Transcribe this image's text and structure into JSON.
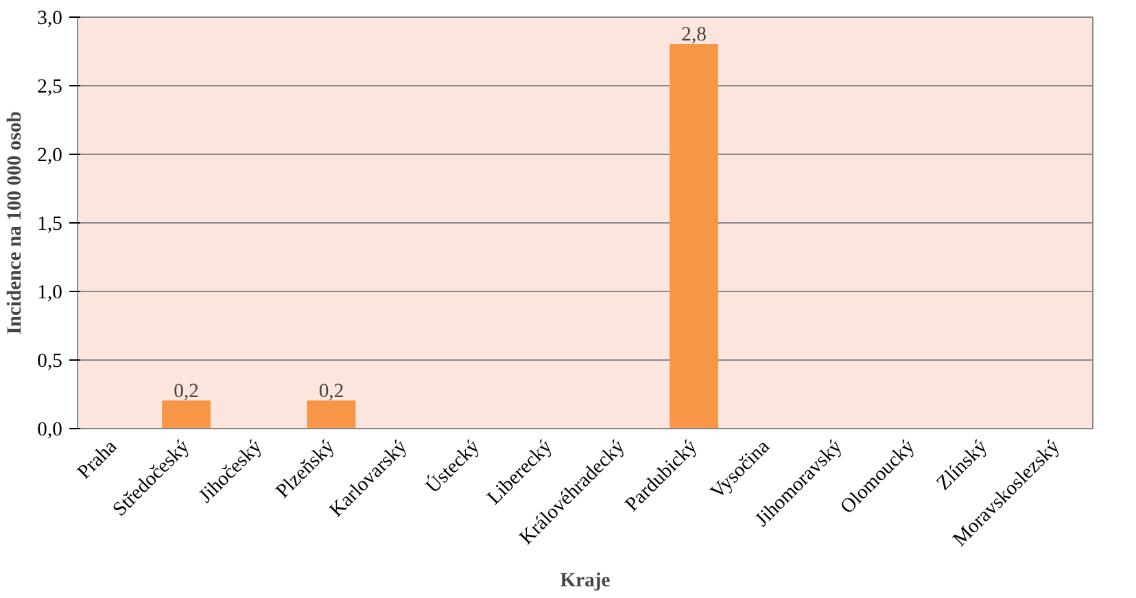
{
  "chart_data": {
    "type": "bar",
    "xlabel": "Kraje",
    "ylabel": "Incidence na 100 000 osob",
    "categories": [
      "Praha",
      "Středočeský",
      "Jihočeský",
      "Plzeňský",
      "Karlovarský",
      "Ústecký",
      "Liberecký",
      "Královéhradecký",
      "Pardubický",
      "Vysočina",
      "Jihomoravský",
      "Olomoucký",
      "Zlínský",
      "Moravskoslezský"
    ],
    "values": [
      0,
      0.2,
      0,
      0.2,
      0,
      0,
      0,
      0,
      2.8,
      0,
      0,
      0,
      0,
      0
    ],
    "value_labels": [
      null,
      "0,2",
      null,
      "0,2",
      null,
      null,
      null,
      null,
      "2,8",
      null,
      null,
      null,
      null,
      null
    ],
    "color": "#f79646",
    "ylim": [
      0,
      3
    ],
    "yticks": [
      {
        "value": 0,
        "label": "0,0"
      },
      {
        "value": 0.5,
        "label": "0,5"
      },
      {
        "value": 1,
        "label": "1,0"
      },
      {
        "value": 1.5,
        "label": "1,5"
      },
      {
        "value": 2,
        "label": "2,0"
      },
      {
        "value": 2.5,
        "label": "2,5"
      },
      {
        "value": 3,
        "label": "3,0"
      }
    ],
    "grid": "y"
  }
}
